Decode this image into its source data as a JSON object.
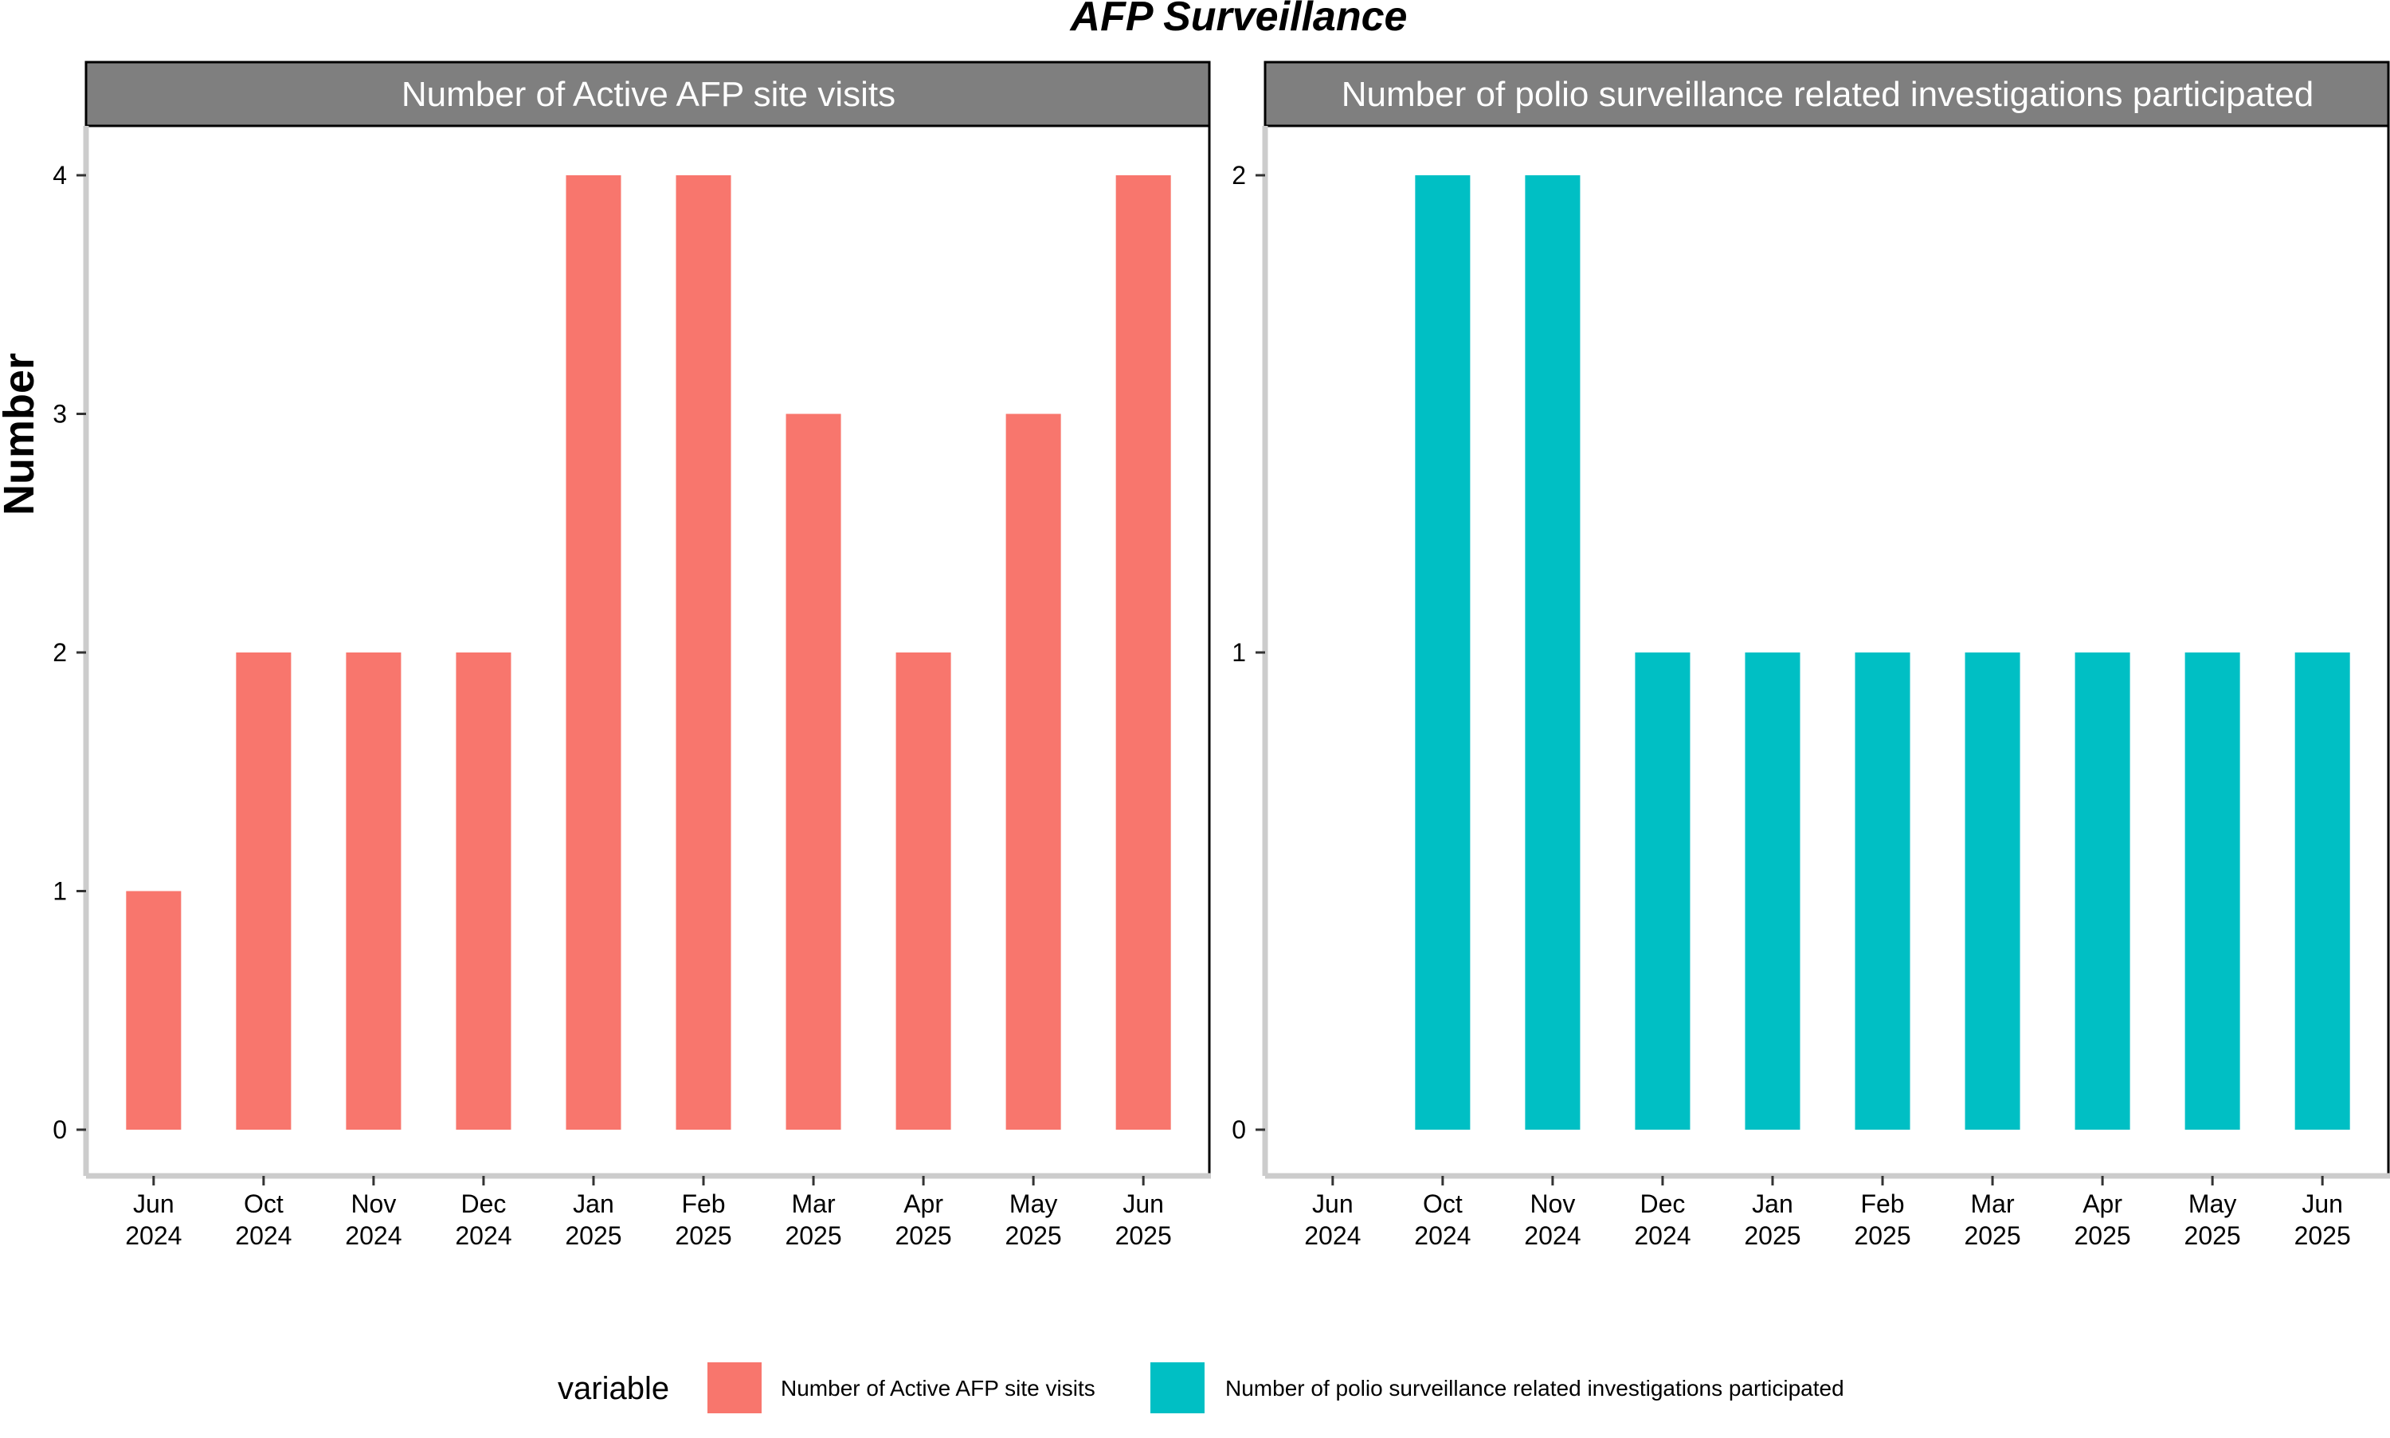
{
  "title": "AFP Surveillance",
  "ylabel": "Number",
  "legend": {
    "title": "variable",
    "placement": "bottom",
    "entries": [
      {
        "label": "Number of Active AFP site visits",
        "color": "#F8766D"
      },
      {
        "label": "Number of polio surveillance related investigations participated",
        "color": "#00BFC4"
      }
    ]
  },
  "colors": {
    "strip_background": "#7F7F7F",
    "axis_line": "#CCCCCC",
    "panel_border": "#000000"
  },
  "chart_data": [
    {
      "type": "bar",
      "facet_label": "Number of Active AFP site visits",
      "categories": [
        [
          "Jun",
          "2024"
        ],
        [
          "Oct",
          "2024"
        ],
        [
          "Nov",
          "2024"
        ],
        [
          "Dec",
          "2024"
        ],
        [
          "Jan",
          "2025"
        ],
        [
          "Feb",
          "2025"
        ],
        [
          "Mar",
          "2025"
        ],
        [
          "Apr",
          "2025"
        ],
        [
          "May",
          "2025"
        ],
        [
          "Jun",
          "2025"
        ]
      ],
      "values": [
        1,
        2,
        2,
        2,
        4,
        4,
        3,
        2,
        3,
        4
      ],
      "color": "#F8766D",
      "ylim": [
        0,
        4
      ],
      "yticks": [
        0,
        1,
        2,
        3,
        4
      ],
      "grid": false
    },
    {
      "type": "bar",
      "facet_label": "Number of polio surveillance related investigations participated",
      "categories": [
        [
          "Jun",
          "2024"
        ],
        [
          "Oct",
          "2024"
        ],
        [
          "Nov",
          "2024"
        ],
        [
          "Dec",
          "2024"
        ],
        [
          "Jan",
          "2025"
        ],
        [
          "Feb",
          "2025"
        ],
        [
          "Mar",
          "2025"
        ],
        [
          "Apr",
          "2025"
        ],
        [
          "May",
          "2025"
        ],
        [
          "Jun",
          "2025"
        ]
      ],
      "values": [
        0,
        2,
        2,
        1,
        1,
        1,
        1,
        1,
        1,
        1
      ],
      "color": "#00BFC4",
      "ylim": [
        0,
        2
      ],
      "yticks": [
        0,
        1,
        2
      ],
      "grid": false
    }
  ]
}
